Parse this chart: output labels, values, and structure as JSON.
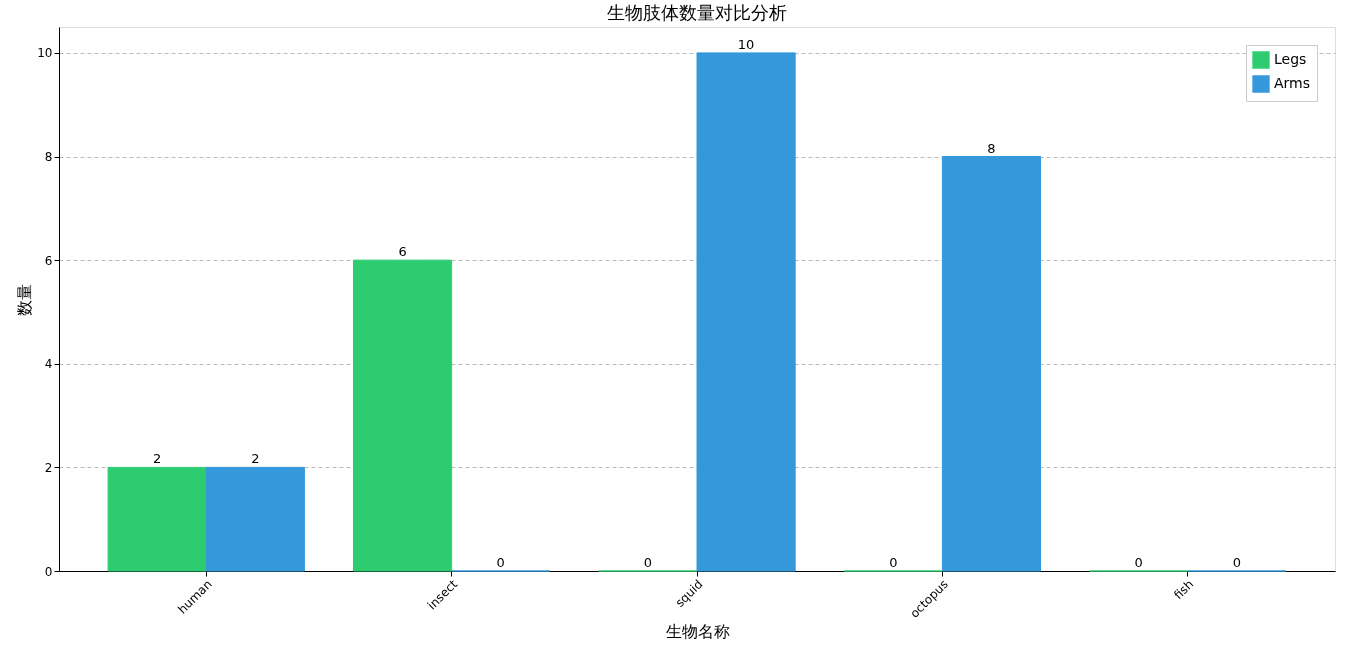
{
  "chart_data": {
    "type": "bar",
    "title": "生物肢体数量对比分析",
    "xlabel": "生物名称",
    "ylabel": "数量",
    "categories": [
      "human",
      "insect",
      "squid",
      "octopus",
      "fish"
    ],
    "series": [
      {
        "name": "Legs",
        "color": "#2ecc71",
        "values": [
          2,
          6,
          0,
          0,
          0
        ]
      },
      {
        "name": "Arms",
        "color": "#3498db",
        "values": [
          2,
          0,
          10,
          8,
          0
        ]
      }
    ],
    "ylim": [
      0,
      10.5
    ],
    "yticks": [
      0,
      2,
      4,
      6,
      8,
      10
    ],
    "grid": "y",
    "legend": "top right",
    "data_labels": true
  }
}
